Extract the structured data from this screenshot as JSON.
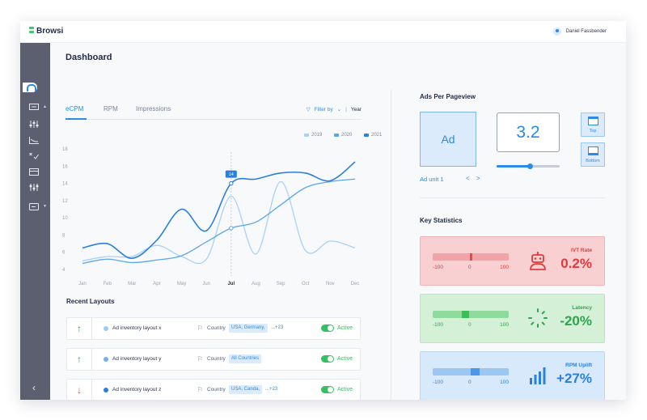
{
  "app": {
    "brand": "Browsi",
    "user_name": "Daniel Fassbender"
  },
  "sidebar": {
    "items": [
      {
        "icon": "dashboard-icon",
        "active": true
      },
      {
        "icon": "layouts-icon",
        "has_caret": true
      },
      {
        "icon": "sliders-icon"
      },
      {
        "icon": "area-chart-icon"
      },
      {
        "icon": "compare-icon"
      },
      {
        "icon": "card-icon"
      },
      {
        "icon": "tuning-icon"
      },
      {
        "icon": "billing-icon",
        "has_caret": true
      }
    ],
    "collapse_icon": "chevron-left-icon",
    "settings_icon": "gear-icon"
  },
  "dashboard": {
    "title": "Dashboard",
    "tabs": [
      "eCPM",
      "RPM",
      "Impressions"
    ],
    "active_tab": "eCPM",
    "filter_label": "Filter by",
    "period_label": "Year"
  },
  "chart_data": {
    "type": "line",
    "categories": [
      "Jan",
      "Feb",
      "Mar",
      "Apr",
      "May",
      "Jun",
      "Jul",
      "Aug",
      "Sep",
      "Oct",
      "Nov",
      "Dec"
    ],
    "yticks": [
      4,
      6,
      8,
      10,
      12,
      14,
      16,
      18
    ],
    "ylim": [
      4,
      18
    ],
    "grid": false,
    "legend_position": "top-right",
    "series": [
      {
        "name": "2019",
        "color": "#a9d1f7",
        "values": [
          5.0,
          5.5,
          5.5,
          6.8,
          5.5,
          5.2,
          12.5,
          5.8,
          14.2,
          6.2,
          7.3,
          6.5
        ]
      },
      {
        "name": "2020",
        "color": "#5aa6ed",
        "values": [
          4.7,
          5.2,
          4.8,
          5.1,
          5.6,
          7.2,
          8.8,
          9.5,
          11.5,
          13.5,
          14.2,
          14.5
        ]
      },
      {
        "name": "2021",
        "color": "#2b7fe0",
        "values": [
          6.5,
          7.0,
          5.3,
          7.4,
          11.0,
          8.5,
          14.0,
          14.5,
          15.2,
          15.2,
          14.3,
          16.5
        ]
      }
    ],
    "tooltip": {
      "category": "Jul",
      "value": "14"
    }
  },
  "recent_layouts": {
    "title": "Recent Layouts",
    "country_label": "Country",
    "rows": [
      {
        "trend": "up",
        "trend_symbol": "↑",
        "name": "Ad inventory layout x",
        "dot_color": "#9ec8f4",
        "countries": "USA, Germany,",
        "more": "...+23",
        "status": "Active"
      },
      {
        "trend": "up",
        "trend_symbol": "↑",
        "name": "Ad inventory layout y",
        "dot_color": "#6fb0ee",
        "countries": "All Countries",
        "more": "",
        "status": "Active"
      },
      {
        "trend": "down",
        "trend_symbol": "↓",
        "name": "Ad inventory layout z",
        "dot_color": "#2b7fe0",
        "countries": "USA, Canda,",
        "more": "...+23",
        "status": "Active"
      }
    ]
  },
  "ads_per_pageview": {
    "title": "Ads Per Pageview",
    "ad_label": "Ad",
    "ad_unit_label": "Ad unit 1",
    "nav_symbols": "< >",
    "value": "3.2",
    "slider_fraction": 0.52,
    "position_top_label": "Top",
    "position_bottom_label": "Bottom"
  },
  "key_statistics": {
    "title": "Key Statistics",
    "range_min": "-100",
    "range_mid": "0",
    "range_max": "100",
    "cards": [
      {
        "label": "IVT Rate",
        "value": "0.2%",
        "icon": "robot-icon",
        "marker_fraction": 0.5,
        "theme": "red",
        "accent": "#e03b3b",
        "bar_color": "#f2a3a7",
        "marker_color": "#e8474c"
      },
      {
        "label": "Latency",
        "value": "-20%",
        "icon": "spinner-icon",
        "marker_fraction": 0.43,
        "theme": "green",
        "accent": "#2ea44f",
        "bar_color": "#8fdb9c",
        "marker_color": "#3bbd59"
      },
      {
        "label": "RPM Uplift",
        "value": "+27%",
        "icon": "bar-chart-icon",
        "marker_fraction": 0.56,
        "theme": "blue",
        "accent": "#2b7fe0",
        "bar_color": "#9cc7f2",
        "marker_color": "#4b97e9"
      }
    ]
  }
}
